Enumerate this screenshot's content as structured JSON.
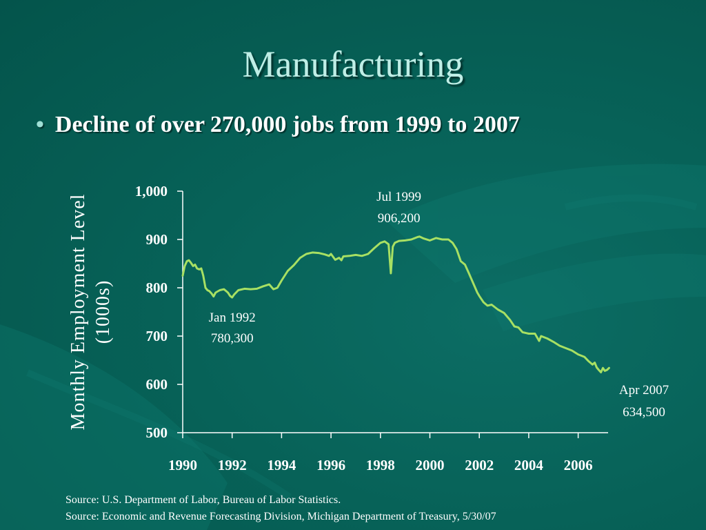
{
  "slide": {
    "title": "Manufacturing",
    "bullet": "Decline of over 270,000 jobs from 1999 to 2007"
  },
  "sources": [
    "Source:  U.S. Department of Labor, Bureau of Labor Statistics.",
    "Source:  Economic and Revenue Forecasting Division, Michigan Department of Treasury, 5/30/07"
  ],
  "colors": {
    "line": "#a8e063",
    "text": "#ffffff",
    "title": "#bfeee6",
    "background": "#076258"
  },
  "chart_data": {
    "type": "line",
    "title": "",
    "ylabel_lines": [
      "Monthly Employment Level",
      "(1000s)"
    ],
    "xlabel": "",
    "xlim": [
      1990,
      2007.58
    ],
    "ylim": [
      500,
      1000
    ],
    "grid": false,
    "legend": "none",
    "yticks": [
      1000,
      900,
      800,
      700,
      600,
      500
    ],
    "ytick_labels": [
      "1,000",
      "900",
      "800",
      "700",
      "600",
      "500"
    ],
    "xticks": [
      1990,
      1992,
      1994,
      1996,
      1998,
      2000,
      2002,
      2004,
      2006
    ],
    "xtick_labels": [
      "1990",
      "1992",
      "1994",
      "1996",
      "1998",
      "2000",
      "2002",
      "2004",
      "2006"
    ],
    "series": [
      {
        "x": [
          1990.0,
          1990.08,
          1990.17,
          1990.25,
          1990.33,
          1990.42,
          1990.5,
          1990.58,
          1990.67,
          1990.75,
          1990.83,
          1990.92,
          1991.0,
          1991.08,
          1991.17,
          1991.25,
          1991.33,
          1991.5,
          1991.67,
          1991.83,
          1991.92,
          1992.0,
          1992.08,
          1992.25,
          1992.5,
          1992.75,
          1993.0,
          1993.25,
          1993.5,
          1993.67,
          1993.83,
          1994.0,
          1994.25,
          1994.5,
          1994.75,
          1995.0,
          1995.25,
          1995.5,
          1995.75,
          1995.92,
          1996.0,
          1996.17,
          1996.33,
          1996.42,
          1996.5,
          1996.75,
          1997.0,
          1997.25,
          1997.5,
          1997.75,
          1998.0,
          1998.17,
          1998.25,
          1998.33,
          1998.42,
          1998.5,
          1998.58,
          1998.75,
          1999.0,
          1999.25,
          1999.5,
          1999.58,
          1999.75,
          2000.0,
          2000.25,
          2000.5,
          2000.75,
          2000.92,
          2001.08,
          2001.25,
          2001.42,
          2001.58,
          2001.75,
          2001.92,
          2002.0,
          2002.17,
          2002.33,
          2002.5,
          2002.75,
          2003.0,
          2003.25,
          2003.42,
          2003.58,
          2003.75,
          2004.0,
          2004.25,
          2004.42,
          2004.5,
          2004.75,
          2005.0,
          2005.25,
          2005.5,
          2005.75,
          2006.0,
          2006.25,
          2006.42,
          2006.58,
          2006.67,
          2006.75,
          2006.83,
          2006.92,
          2007.0,
          2007.08,
          2007.17,
          2007.25
        ],
        "y": [
          825,
          845,
          855,
          857,
          852,
          845,
          848,
          840,
          838,
          840,
          825,
          800,
          795,
          793,
          788,
          782,
          790,
          795,
          797,
          790,
          783,
          780,
          786,
          795,
          798,
          797,
          798,
          803,
          807,
          797,
          800,
          815,
          835,
          847,
          862,
          870,
          873,
          872,
          869,
          866,
          870,
          858,
          862,
          857,
          865,
          866,
          868,
          866,
          870,
          882,
          893,
          896,
          893,
          890,
          830,
          885,
          893,
          897,
          898,
          900,
          905,
          906,
          902,
          898,
          903,
          900,
          900,
          893,
          880,
          855,
          848,
          830,
          810,
          790,
          783,
          770,
          763,
          765,
          755,
          748,
          733,
          720,
          718,
          708,
          705,
          705,
          690,
          700,
          695,
          688,
          680,
          675,
          670,
          662,
          657,
          648,
          641,
          645,
          635,
          630,
          625,
          634,
          628,
          630,
          634
        ]
      }
    ],
    "annotations": [
      {
        "x": 1992.0,
        "y": 780.3,
        "lines": [
          "Jan 1992",
          "780,300"
        ]
      },
      {
        "x": 1999.5,
        "y": 906.2,
        "lines": [
          "Jul 1999",
          "906,200"
        ]
      },
      {
        "x": 2007.25,
        "y": 634.5,
        "lines": [
          "Apr 2007",
          "634,500"
        ]
      }
    ]
  }
}
